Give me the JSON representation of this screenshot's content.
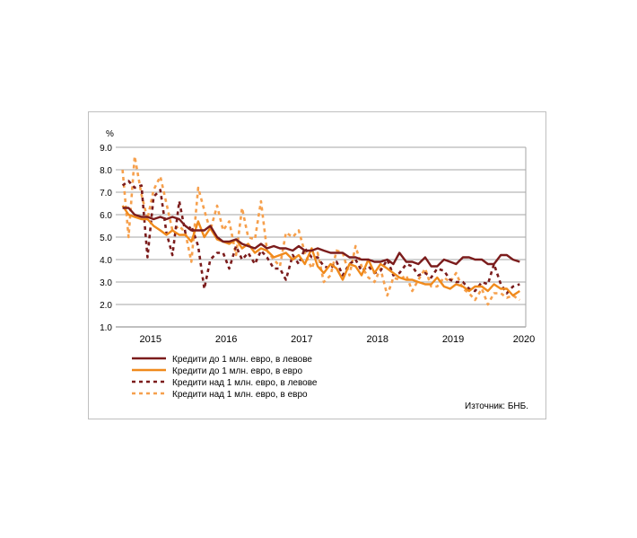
{
  "chart_data": {
    "type": "line",
    "ylabel": "%",
    "ylim": [
      1.0,
      9.0
    ],
    "y_ticks": [
      "1.0",
      "2.0",
      "3.0",
      "4.0",
      "5.0",
      "6.0",
      "7.0",
      "8.0",
      "9.0"
    ],
    "x_ticks": [
      "2015",
      "2016",
      "2017",
      "2018",
      "2019",
      "2020"
    ],
    "xlim": [
      2014.54,
      2019.96
    ],
    "grid": true,
    "legend_position": "bottom-left",
    "source": "Източник: БНБ.",
    "series": [
      {
        "name": "Кредити до 1 млн. евро, в левове",
        "color": "#7b1c1c",
        "style": "solid",
        "x": [
          2014.63,
          2014.71,
          2014.79,
          2014.88,
          2014.96,
          2015.04,
          2015.13,
          2015.21,
          2015.29,
          2015.38,
          2015.46,
          2015.54,
          2015.63,
          2015.71,
          2015.79,
          2015.88,
          2015.96,
          2016.04,
          2016.13,
          2016.21,
          2016.29,
          2016.38,
          2016.46,
          2016.54,
          2016.63,
          2016.71,
          2016.79,
          2016.88,
          2016.96,
          2017.04,
          2017.13,
          2017.21,
          2017.29,
          2017.38,
          2017.46,
          2017.54,
          2017.63,
          2017.71,
          2017.79,
          2017.88,
          2017.96,
          2018.04,
          2018.13,
          2018.21,
          2018.29,
          2018.38,
          2018.46,
          2018.54,
          2018.63,
          2018.71,
          2018.79,
          2018.88,
          2018.96,
          2019.04,
          2019.13,
          2019.21,
          2019.29,
          2019.38,
          2019.46,
          2019.54,
          2019.63,
          2019.71,
          2019.79,
          2019.88
        ],
        "y": [
          6.3,
          6.3,
          6.0,
          5.9,
          5.9,
          5.8,
          5.9,
          5.8,
          5.9,
          5.8,
          5.5,
          5.3,
          5.3,
          5.3,
          5.5,
          5.0,
          4.8,
          4.8,
          4.9,
          4.7,
          4.6,
          4.5,
          4.7,
          4.5,
          4.6,
          4.5,
          4.5,
          4.4,
          4.6,
          4.4,
          4.4,
          4.5,
          4.4,
          4.3,
          4.3,
          4.3,
          4.1,
          4.1,
          4.0,
          4.0,
          3.9,
          3.9,
          4.0,
          3.8,
          4.3,
          3.9,
          3.9,
          3.8,
          4.1,
          3.7,
          3.7,
          4.0,
          3.9,
          3.8,
          4.1,
          4.1,
          4.0,
          4.0,
          3.8,
          3.8,
          4.2,
          4.2,
          4.0,
          3.9
        ]
      },
      {
        "name": "Кредити до 1 млн. евро, в евро",
        "color": "#f08a1c",
        "style": "solid",
        "x": [
          2014.63,
          2014.71,
          2014.79,
          2014.88,
          2014.96,
          2015.04,
          2015.13,
          2015.21,
          2015.29,
          2015.38,
          2015.46,
          2015.54,
          2015.63,
          2015.71,
          2015.79,
          2015.88,
          2015.96,
          2016.04,
          2016.13,
          2016.21,
          2016.29,
          2016.38,
          2016.46,
          2016.54,
          2016.63,
          2016.71,
          2016.79,
          2016.88,
          2016.96,
          2017.04,
          2017.13,
          2017.21,
          2017.29,
          2017.38,
          2017.46,
          2017.54,
          2017.63,
          2017.71,
          2017.79,
          2017.88,
          2017.96,
          2018.04,
          2018.13,
          2018.21,
          2018.29,
          2018.38,
          2018.46,
          2018.54,
          2018.63,
          2018.71,
          2018.79,
          2018.88,
          2018.96,
          2019.04,
          2019.13,
          2019.21,
          2019.29,
          2019.38,
          2019.46,
          2019.54,
          2019.63,
          2019.71,
          2019.79,
          2019.88
        ],
        "y": [
          6.4,
          6.0,
          5.9,
          5.8,
          5.8,
          5.5,
          5.3,
          5.1,
          5.3,
          5.1,
          5.1,
          4.8,
          5.7,
          5.0,
          5.4,
          4.9,
          4.8,
          4.7,
          4.9,
          4.5,
          4.7,
          4.3,
          4.5,
          4.4,
          4.1,
          4.2,
          4.3,
          4.0,
          4.2,
          3.8,
          4.5,
          3.7,
          3.4,
          3.8,
          3.6,
          3.1,
          3.8,
          3.7,
          3.3,
          4.0,
          3.4,
          3.8,
          3.6,
          3.4,
          3.2,
          3.1,
          3.1,
          3.0,
          2.9,
          2.9,
          3.2,
          2.8,
          2.7,
          2.9,
          2.8,
          2.6,
          2.8,
          2.8,
          2.6,
          2.9,
          2.7,
          2.7,
          2.4,
          2.6
        ]
      },
      {
        "name": "Кредити над 1 млн. евро, в левове",
        "color": "#7b1c1c",
        "style": "dashed",
        "x": [
          2014.63,
          2014.71,
          2014.79,
          2014.88,
          2014.96,
          2015.04,
          2015.13,
          2015.21,
          2015.29,
          2015.38,
          2015.46,
          2015.54,
          2015.63,
          2015.71,
          2015.79,
          2015.88,
          2015.96,
          2016.04,
          2016.13,
          2016.21,
          2016.29,
          2016.38,
          2016.46,
          2016.54,
          2016.63,
          2016.71,
          2016.79,
          2016.88,
          2016.96,
          2017.04,
          2017.13,
          2017.21,
          2017.29,
          2017.38,
          2017.46,
          2017.54,
          2017.63,
          2017.71,
          2017.79,
          2017.88,
          2017.96,
          2018.04,
          2018.13,
          2018.21,
          2018.29,
          2018.38,
          2018.46,
          2018.54,
          2018.63,
          2018.71,
          2018.79,
          2018.88,
          2018.96,
          2019.04,
          2019.13,
          2019.21,
          2019.29,
          2019.38,
          2019.46,
          2019.54,
          2019.63,
          2019.71,
          2019.79,
          2019.88
        ],
        "y": [
          7.3,
          7.5,
          7.2,
          7.3,
          4.1,
          6.8,
          7.1,
          5.2,
          4.2,
          6.6,
          5.2,
          5.5,
          4.6,
          2.7,
          4.0,
          4.3,
          4.3,
          3.6,
          4.6,
          4.0,
          4.3,
          3.8,
          4.4,
          4.1,
          3.6,
          3.6,
          3.1,
          4.2,
          3.8,
          4.5,
          4.1,
          4.1,
          3.7,
          3.6,
          3.9,
          3.3,
          3.8,
          4.0,
          3.5,
          3.7,
          3.4,
          3.5,
          4.0,
          3.3,
          3.4,
          3.8,
          3.7,
          3.3,
          3.4,
          3.2,
          3.6,
          3.5,
          3.1,
          3.0,
          3.0,
          2.7,
          2.6,
          3.0,
          2.9,
          3.8,
          2.9,
          2.5,
          2.8,
          2.9
        ]
      },
      {
        "name": "Кредити над 1 млн. евро, в евро",
        "color": "#f6a04d",
        "style": "dashed",
        "x": [
          2014.63,
          2014.71,
          2014.79,
          2014.88,
          2014.96,
          2015.04,
          2015.13,
          2015.21,
          2015.29,
          2015.38,
          2015.46,
          2015.54,
          2015.63,
          2015.71,
          2015.79,
          2015.88,
          2015.96,
          2016.04,
          2016.13,
          2016.21,
          2016.29,
          2016.38,
          2016.46,
          2016.54,
          2016.63,
          2016.71,
          2016.79,
          2016.88,
          2016.96,
          2017.04,
          2017.13,
          2017.21,
          2017.29,
          2017.38,
          2017.46,
          2017.54,
          2017.63,
          2017.71,
          2017.79,
          2017.88,
          2017.96,
          2018.04,
          2018.13,
          2018.21,
          2018.29,
          2018.38,
          2018.46,
          2018.54,
          2018.63,
          2018.71,
          2018.79,
          2018.88,
          2018.96,
          2019.04,
          2019.13,
          2019.21,
          2019.29,
          2019.38,
          2019.46,
          2019.54,
          2019.63,
          2019.71,
          2019.79,
          2019.88
        ],
        "y": [
          8.0,
          5.0,
          8.6,
          6.9,
          5.8,
          7.1,
          7.7,
          6.5,
          5.3,
          5.5,
          5.2,
          3.9,
          7.2,
          6.2,
          5.3,
          6.4,
          5.3,
          5.7,
          4.2,
          6.3,
          5.0,
          4.9,
          6.6,
          4.4,
          4.0,
          3.7,
          5.2,
          5.0,
          5.3,
          4.3,
          3.6,
          4.3,
          3.0,
          3.3,
          4.4,
          4.3,
          3.3,
          4.6,
          3.7,
          3.2,
          3.0,
          3.6,
          2.4,
          3.2,
          3.1,
          3.3,
          2.6,
          3.1,
          3.6,
          2.8,
          2.8,
          3.2,
          3.0,
          3.4,
          2.7,
          2.5,
          2.2,
          2.7,
          2.0,
          2.5,
          2.5,
          2.3,
          2.4,
          2.2
        ]
      }
    ]
  }
}
